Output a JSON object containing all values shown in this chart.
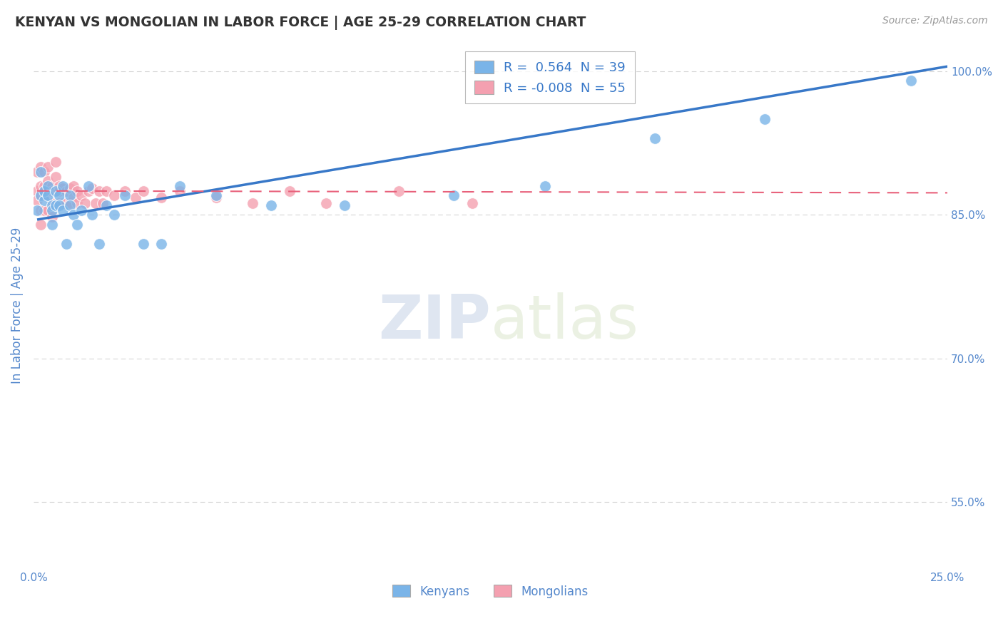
{
  "title": "KENYAN VS MONGOLIAN IN LABOR FORCE | AGE 25-29 CORRELATION CHART",
  "source_text": "Source: ZipAtlas.com",
  "ylabel": "In Labor Force | Age 25-29",
  "xlabel": "",
  "xlim": [
    0.0,
    0.25
  ],
  "ylim": [
    0.48,
    1.03
  ],
  "yticks": [
    0.55,
    0.7,
    0.85,
    1.0
  ],
  "ytick_labels": [
    "55.0%",
    "70.0%",
    "85.0%",
    "100.0%"
  ],
  "xticks": [
    0.0,
    0.05,
    0.1,
    0.15,
    0.2,
    0.25
  ],
  "xtick_labels": [
    "0.0%",
    "",
    "",
    "",
    "",
    "25.0%"
  ],
  "kenyan_R": 0.564,
  "kenyan_N": 39,
  "mongolian_R": -0.008,
  "mongolian_N": 55,
  "kenyan_color": "#7ab4e8",
  "mongolian_color": "#f4a0b0",
  "kenyan_line_color": "#3878c8",
  "mongolian_line_color": "#e8607a",
  "background_color": "#ffffff",
  "grid_color": "#cccccc",
  "title_color": "#333333",
  "axis_label_color": "#5588cc",
  "watermark_zip": "ZIP",
  "watermark_atlas": "atlas",
  "kenyan_x": [
    0.001,
    0.002,
    0.002,
    0.003,
    0.003,
    0.004,
    0.004,
    0.005,
    0.005,
    0.005,
    0.006,
    0.006,
    0.007,
    0.007,
    0.008,
    0.008,
    0.009,
    0.01,
    0.01,
    0.011,
    0.012,
    0.013,
    0.015,
    0.016,
    0.018,
    0.02,
    0.022,
    0.025,
    0.03,
    0.035,
    0.04,
    0.05,
    0.065,
    0.085,
    0.115,
    0.14,
    0.17,
    0.2,
    0.24
  ],
  "kenyan_y": [
    0.855,
    0.87,
    0.895,
    0.865,
    0.875,
    0.88,
    0.87,
    0.86,
    0.855,
    0.84,
    0.875,
    0.86,
    0.87,
    0.86,
    0.88,
    0.855,
    0.82,
    0.87,
    0.86,
    0.85,
    0.84,
    0.855,
    0.88,
    0.85,
    0.82,
    0.86,
    0.85,
    0.87,
    0.82,
    0.82,
    0.88,
    0.87,
    0.86,
    0.86,
    0.87,
    0.88,
    0.93,
    0.95,
    0.99
  ],
  "mongolian_x": [
    0.001,
    0.001,
    0.001,
    0.002,
    0.002,
    0.002,
    0.002,
    0.002,
    0.003,
    0.003,
    0.003,
    0.003,
    0.004,
    0.004,
    0.004,
    0.005,
    0.005,
    0.005,
    0.005,
    0.006,
    0.006,
    0.006,
    0.007,
    0.007,
    0.007,
    0.008,
    0.008,
    0.009,
    0.009,
    0.01,
    0.01,
    0.011,
    0.011,
    0.012,
    0.012,
    0.013,
    0.014,
    0.015,
    0.016,
    0.017,
    0.018,
    0.019,
    0.02,
    0.022,
    0.025,
    0.028,
    0.03,
    0.035,
    0.04,
    0.05,
    0.06,
    0.07,
    0.08,
    0.1,
    0.12
  ],
  "mongolian_y": [
    0.895,
    0.875,
    0.865,
    0.9,
    0.88,
    0.87,
    0.855,
    0.84,
    0.895,
    0.88,
    0.87,
    0.855,
    0.9,
    0.885,
    0.855,
    0.88,
    0.875,
    0.862,
    0.848,
    0.905,
    0.89,
    0.875,
    0.88,
    0.875,
    0.862,
    0.878,
    0.862,
    0.875,
    0.862,
    0.878,
    0.862,
    0.88,
    0.868,
    0.875,
    0.862,
    0.87,
    0.862,
    0.875,
    0.878,
    0.862,
    0.875,
    0.862,
    0.875,
    0.87,
    0.875,
    0.868,
    0.875,
    0.868,
    0.875,
    0.868,
    0.862,
    0.875,
    0.862,
    0.875,
    0.862
  ],
  "kenyan_line_x": [
    0.001,
    0.25
  ],
  "kenyan_line_y": [
    0.845,
    1.005
  ],
  "mongolian_line_x": [
    0.001,
    0.25
  ],
  "mongolian_line_y": [
    0.875,
    0.873
  ]
}
